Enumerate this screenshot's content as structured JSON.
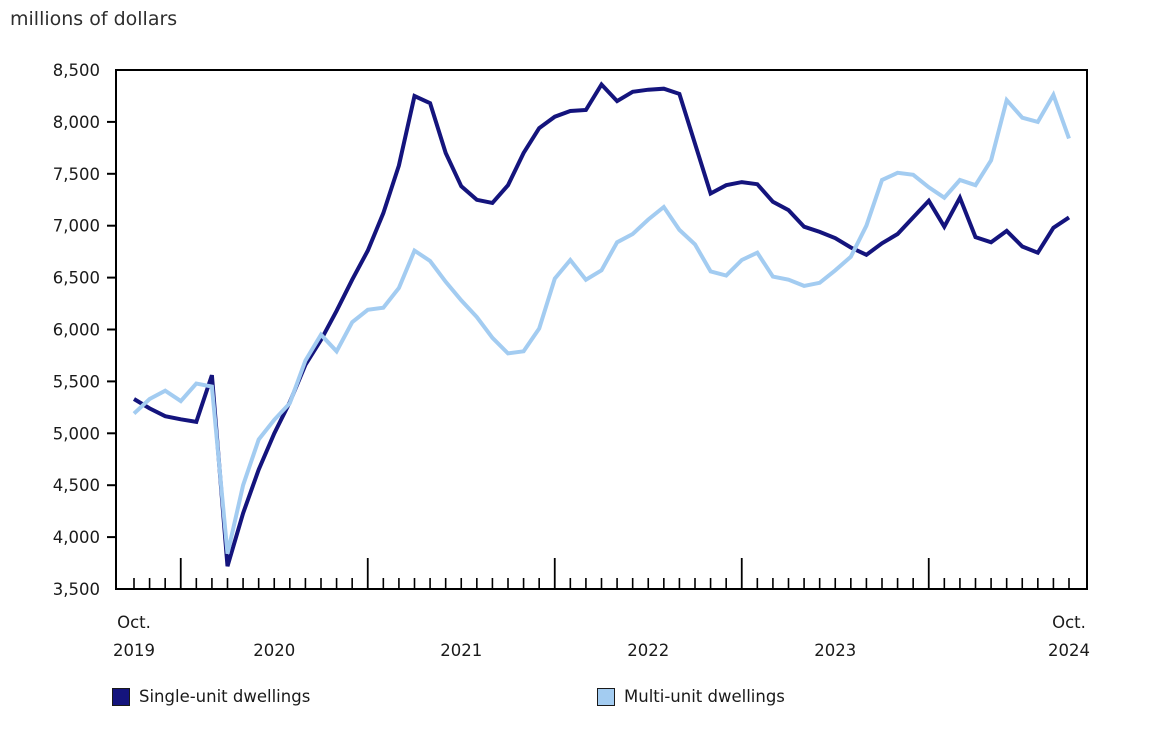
{
  "title": "millions of dollars",
  "chart_data": {
    "type": "line",
    "title": "millions of dollars",
    "xlabel": "",
    "ylabel": "millions of dollars",
    "ylim": [
      3500,
      8500
    ],
    "y_tick_step": 500,
    "grid": false,
    "legend_position": "bottom",
    "x_first_label": {
      "line1": "Oct.",
      "line2": "2019"
    },
    "x_last_label": {
      "line1": "Oct.",
      "line2": "2024"
    },
    "x_tick_years": [
      "2020",
      "2021",
      "2022",
      "2023"
    ],
    "axis_color": "#000000",
    "text_color": "#1a1a1a",
    "months": [
      "2019-10",
      "2019-11",
      "2019-12",
      "2020-01",
      "2020-02",
      "2020-03",
      "2020-04",
      "2020-05",
      "2020-06",
      "2020-07",
      "2020-08",
      "2020-09",
      "2020-10",
      "2020-11",
      "2020-12",
      "2021-01",
      "2021-02",
      "2021-03",
      "2021-04",
      "2021-05",
      "2021-06",
      "2021-07",
      "2021-08",
      "2021-09",
      "2021-10",
      "2021-11",
      "2021-12",
      "2022-01",
      "2022-02",
      "2022-03",
      "2022-04",
      "2022-05",
      "2022-06",
      "2022-07",
      "2022-08",
      "2022-09",
      "2022-10",
      "2022-11",
      "2022-12",
      "2023-01",
      "2023-02",
      "2023-03",
      "2023-04",
      "2023-05",
      "2023-06",
      "2023-07",
      "2023-08",
      "2023-09",
      "2023-10",
      "2023-11",
      "2023-12",
      "2024-01",
      "2024-02",
      "2024-03",
      "2024-04",
      "2024-05",
      "2024-06",
      "2024-07",
      "2024-08",
      "2024-09",
      "2024-10"
    ],
    "series": [
      {
        "name": "Single-unit dwellings",
        "color": "#14147D",
        "values": [
          5330,
          5240,
          5165,
          5135,
          5110,
          5560,
          3720,
          4230,
          4650,
          5000,
          5300,
          5660,
          5900,
          6180,
          6480,
          6760,
          7120,
          7580,
          8250,
          8180,
          7700,
          7380,
          7250,
          7220,
          7390,
          7700,
          7940,
          8050,
          8105,
          8115,
          8360,
          8200,
          8290,
          8310,
          8320,
          8270,
          7790,
          7310,
          7390,
          7420,
          7400,
          7230,
          7150,
          6990,
          6940,
          6880,
          6790,
          6720,
          6830,
          6920,
          7080,
          7240,
          6990,
          7270,
          6890,
          6840,
          6950,
          6800,
          6740,
          6980,
          7080
        ]
      },
      {
        "name": "Multi-unit dwellings",
        "color": "#A3CCF1",
        "values": [
          5190,
          5330,
          5410,
          5310,
          5480,
          5450,
          3840,
          4500,
          4940,
          5130,
          5290,
          5700,
          5950,
          5790,
          6070,
          6190,
          6210,
          6400,
          6760,
          6660,
          6460,
          6280,
          6120,
          5920,
          5770,
          5790,
          6010,
          6490,
          6670,
          6480,
          6570,
          6840,
          6920,
          7060,
          7180,
          6960,
          6820,
          6560,
          6520,
          6670,
          6740,
          6510,
          6480,
          6420,
          6450,
          6570,
          6700,
          7000,
          7440,
          7510,
          7490,
          7370,
          7270,
          7440,
          7390,
          7630,
          8210,
          8040,
          8000,
          8260,
          7840
        ]
      }
    ]
  },
  "legend": {
    "single_label": "Single-unit dwellings",
    "multi_label": "Multi-unit dwellings"
  }
}
